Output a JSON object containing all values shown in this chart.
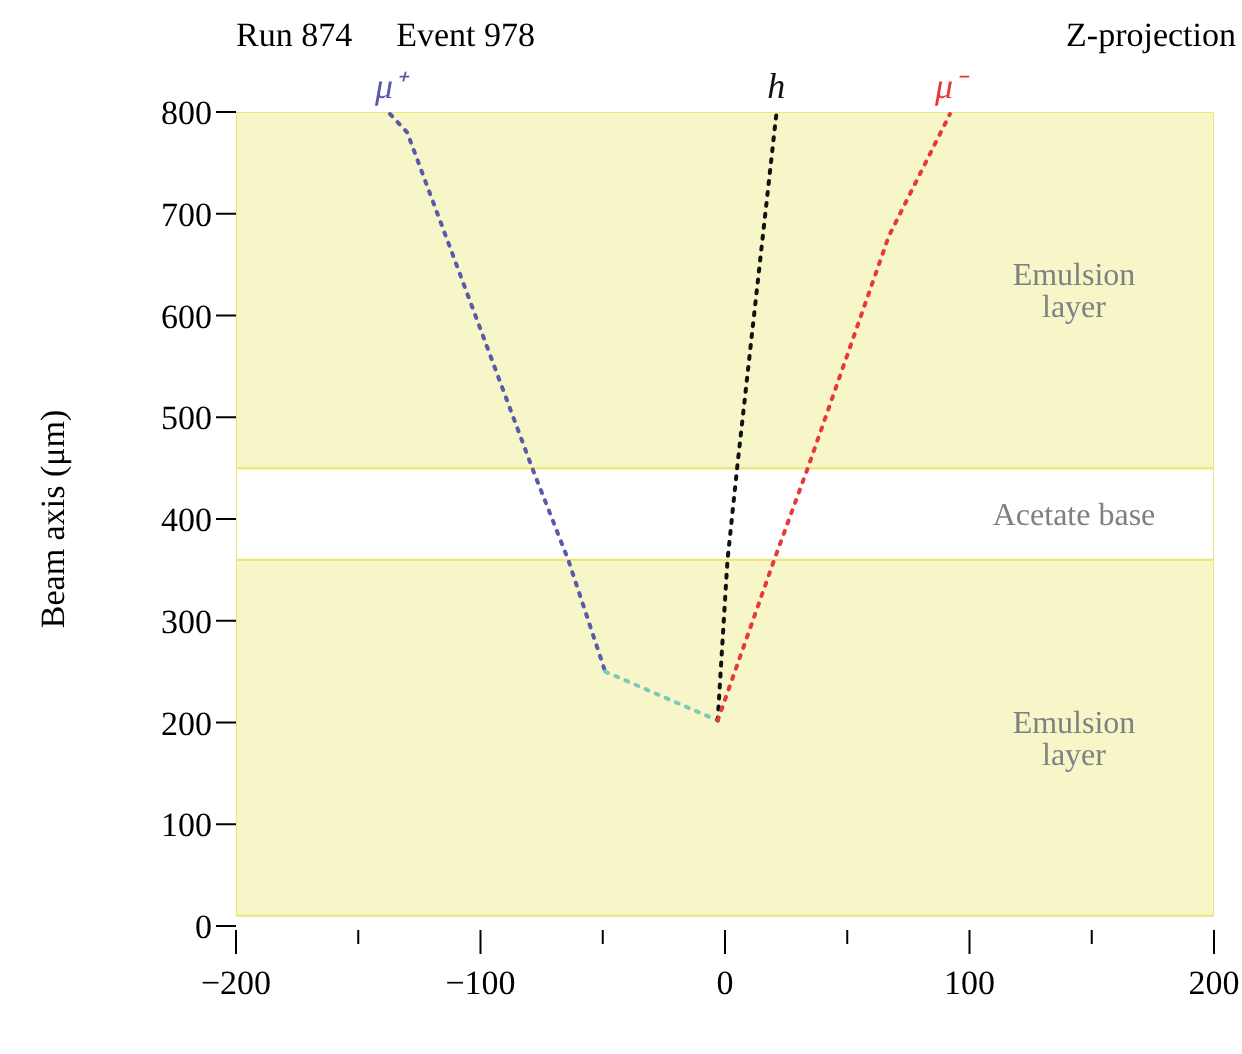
{
  "chart_data": {
    "type": "line",
    "title": "Run 874",
    "subtitle": "Event 978",
    "annotations": [
      "Z-projection"
    ],
    "ylabel": "Beam axis (μm)",
    "series": [
      {
        "name": "μ⁺",
        "color": "#5a5aaa",
        "x": [
          -137,
          -130,
          -79,
          -64,
          -49
        ],
        "values": [
          798,
          780,
          451,
          359,
          250
        ]
      },
      {
        "color": "#7fc8b8",
        "x": [
          -49,
          -3
        ],
        "values": [
          250,
          202
        ]
      },
      {
        "name": "h",
        "color": "#111111",
        "x": [
          -3,
          1,
          5,
          21
        ],
        "values": [
          202,
          359,
          451,
          798
        ]
      },
      {
        "name": "μ⁻",
        "color": "#e8383a",
        "x": [
          -3,
          20,
          34,
          67,
          92
        ],
        "values": [
          202,
          359,
          451,
          678,
          798
        ]
      }
    ],
    "bands": [
      {
        "axis": "y",
        "from": 10,
        "to": 360,
        "label": "Emulsion layer",
        "color": "#f7f6c8"
      },
      {
        "axis": "y",
        "from": 360,
        "to": 450,
        "label": "Acetate base",
        "color": "#ffffff"
      },
      {
        "axis": "y",
        "from": 450,
        "to": 800,
        "label": "Emulsion layer",
        "color": "#f7f6c8"
      }
    ],
    "xlim": [
      -200,
      200
    ],
    "xticks": [
      -200,
      {
        "value": -150,
        "label": null
      },
      -100,
      {
        "value": -50,
        "label": null
      },
      0,
      {
        "value": 50,
        "label": null
      },
      100,
      {
        "value": 150,
        "label": null
      },
      200
    ],
    "ylim": [
      0,
      800
    ],
    "yticks": [
      0,
      100,
      200,
      300,
      400,
      500,
      600,
      700,
      800
    ],
    "marker": "none",
    "line_style": "dotted"
  }
}
